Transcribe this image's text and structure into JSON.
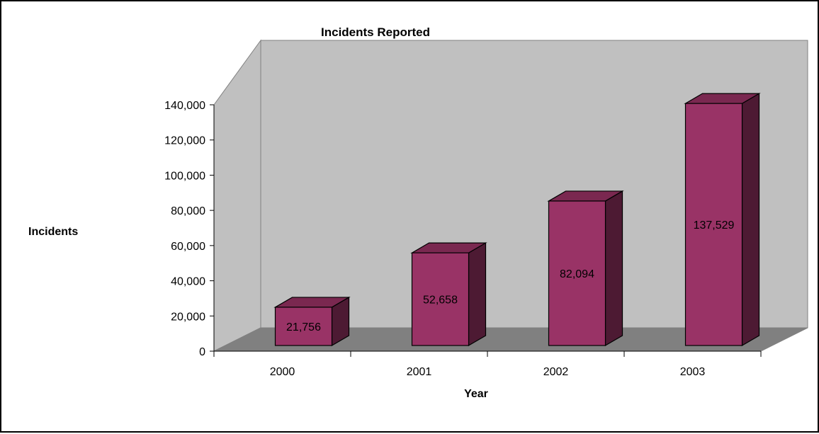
{
  "chart_data": {
    "type": "bar",
    "title": "Incidents Reported",
    "xlabel": "Year",
    "ylabel": "Incidents",
    "categories": [
      "2000",
      "2001",
      "2002",
      "2003"
    ],
    "values": [
      21756,
      52658,
      82094,
      137529
    ],
    "data_labels": [
      "21,756",
      "52,658",
      "82,094",
      "137,529"
    ],
    "ylim": [
      0,
      140000
    ],
    "yticks": [
      0,
      20000,
      40000,
      60000,
      80000,
      100000,
      120000,
      140000
    ],
    "ytick_labels": [
      "0",
      "20,000",
      "40,000",
      "60,000",
      "80,000",
      "100,000",
      "120,000",
      "140,000"
    ],
    "three_d": true,
    "legend": "none",
    "colors": {
      "bar_front": "#993366",
      "bar_top": "#7a2850",
      "bar_side": "#4d1a33",
      "back_wall": "#c0c0c0",
      "side_wall": "#c0c0c0",
      "floor": "#808080"
    }
  }
}
